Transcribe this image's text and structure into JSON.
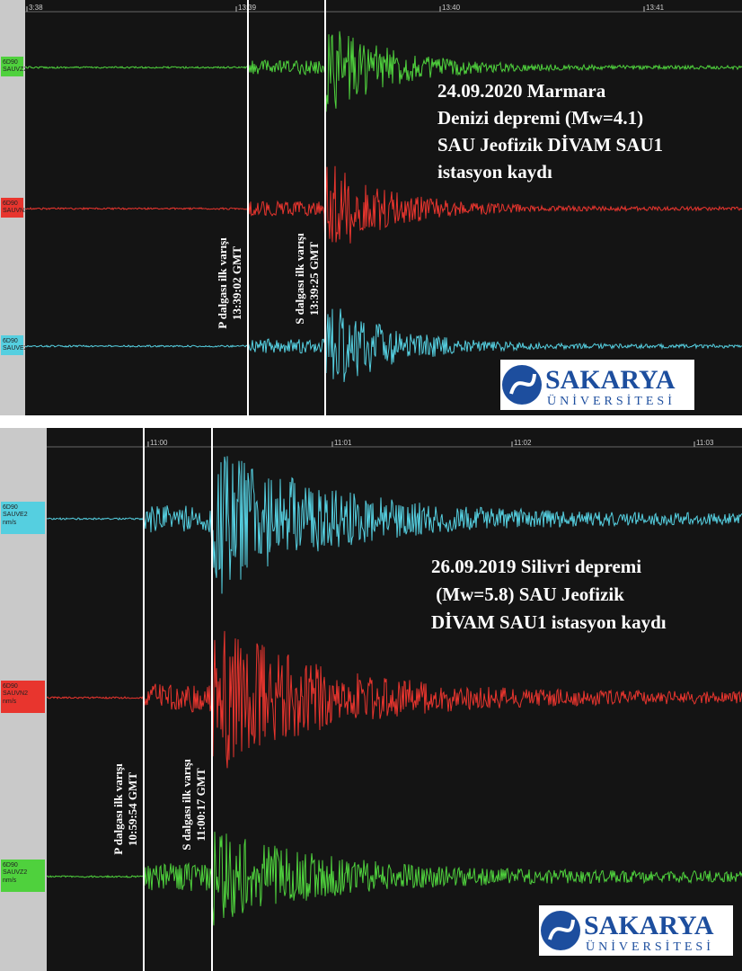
{
  "panels": [
    {
      "time_ticks": [
        "3:38",
        "13:39",
        "13:40",
        "13:41"
      ],
      "channels": [
        {
          "code": "6D90",
          "name": "SAUVZ2"
        },
        {
          "code": "6D90",
          "name": "SAUVN2"
        },
        {
          "code": "6D90",
          "name": "SAUVE2"
        }
      ],
      "p_label": [
        "P dalgası ilk varışı",
        "13:39:02 GMT"
      ],
      "s_label": [
        "S dalgası ilk varışı",
        "13:39:25 GMT"
      ],
      "caption": [
        "24.09.2020 Marmara",
        "Denizi depremi (Mw=4.1)",
        "SAU Jeofizik DİVAM SAU1",
        "istasyon kaydı"
      ],
      "logo": {
        "name": "SAKARYA",
        "sub": "ÜNİVERSİTESİ"
      }
    },
    {
      "time_ticks": [
        "11:00",
        "11:01",
        "11:02",
        "11:03"
      ],
      "channels": [
        {
          "code": "6D90",
          "name": "SAUVE2",
          "unit": "nm/s"
        },
        {
          "code": "6D90",
          "name": "SAUVN2",
          "unit": "nm/s"
        },
        {
          "code": "6D90",
          "name": "SAUVZ2",
          "unit": "nm/s"
        }
      ],
      "p_label": [
        "P dalgası ilk varışı",
        "10:59:54 GMT"
      ],
      "s_label": [
        "S dalgası ilk varışı",
        "11:00:17 GMT"
      ],
      "caption": [
        "26.09.2019 Silivri depremi",
        " (Mw=5.8) SAU Jeofizik",
        "DİVAM SAU1 istasyon kaydı"
      ],
      "logo": {
        "name": "SAKARYA",
        "sub": "ÜNİVERSİTESİ"
      }
    }
  ]
}
